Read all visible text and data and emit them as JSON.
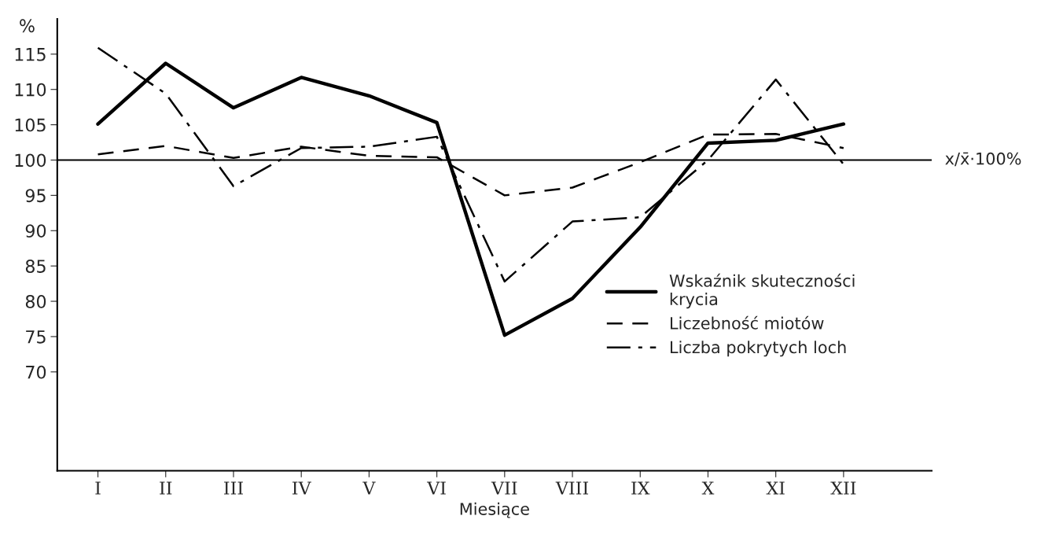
{
  "chart_data": {
    "type": "line",
    "categories": [
      "I",
      "II",
      "III",
      "IV",
      "V",
      "VI",
      "VII",
      "VIII",
      "IX",
      "X",
      "XI",
      "XII"
    ],
    "series": [
      {
        "name": "Wskaźnik skuteczności\nkrycia",
        "color": "#000000",
        "line_style": "solid",
        "values": [
          105.1,
          113.7,
          107.4,
          111.7,
          109.1,
          105.3,
          75.2,
          80.4,
          90.5,
          102.4,
          102.8,
          105.1
        ]
      },
      {
        "name": "Liczebność miotów",
        "color": "#000000",
        "line_style": "dashed",
        "values": [
          100.8,
          102.0,
          100.3,
          101.9,
          100.6,
          100.4,
          95.0,
          96.1,
          99.7,
          103.6,
          103.7,
          101.7
        ]
      },
      {
        "name": "Liczba pokrytych loch",
        "color": "#000000",
        "line_style": "dashdot",
        "values": [
          115.9,
          109.4,
          96.3,
          101.7,
          101.9,
          103.3,
          82.8,
          91.3,
          91.9,
          100.0,
          111.4,
          99.4
        ]
      }
    ],
    "ylabel": "%",
    "xlabel": "Miesiące",
    "ylim": [
      56,
      120
    ],
    "yticks": [
      70,
      75,
      80,
      85,
      90,
      95,
      100,
      105,
      110,
      115
    ],
    "ref_lines": [
      {
        "axis": "y",
        "value": 100,
        "label": "x/x̄·100%",
        "color": "#000000",
        "line_style": "solid"
      }
    ],
    "grid": false,
    "legend": "lower right",
    "marker": "none"
  }
}
